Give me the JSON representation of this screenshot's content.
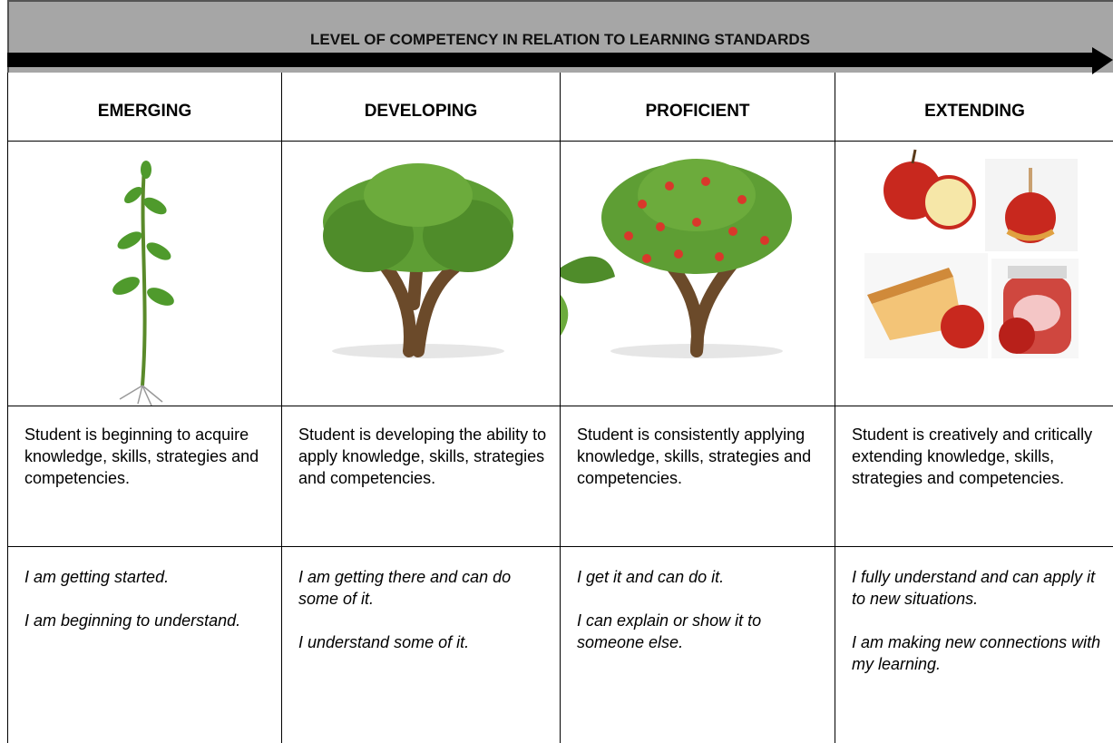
{
  "header": {
    "title": "LEVEL OF COMPETENCY IN RELATION TO LEARNING STANDARDS"
  },
  "table": {
    "columns": [
      {
        "heading": "EMERGING",
        "description": "Student is beginning to acquire knowledge, skills, strategies and competencies.",
        "statements": [
          "I am getting started.",
          "I am beginning to understand."
        ]
      },
      {
        "heading": "DEVELOPING",
        "description": "Student is developing the ability to apply knowledge, skills, strategies and competencies.",
        "statements": [
          "I am getting there and can do some of it.",
          "I understand some of it."
        ]
      },
      {
        "heading": "PROFICIENT",
        "description": "Student is consistently applying knowledge, skills, strategies and competencies.",
        "statements": [
          "I get it and can do it.",
          "I can explain or show it to someone else."
        ]
      },
      {
        "heading": "EXTENDING",
        "description": "Student is creatively and critically extending knowledge, skills, strategies and competencies.",
        "statements": [
          "I fully understand and can apply it to new situations.",
          "I am making new connections with my learning."
        ]
      }
    ]
  }
}
